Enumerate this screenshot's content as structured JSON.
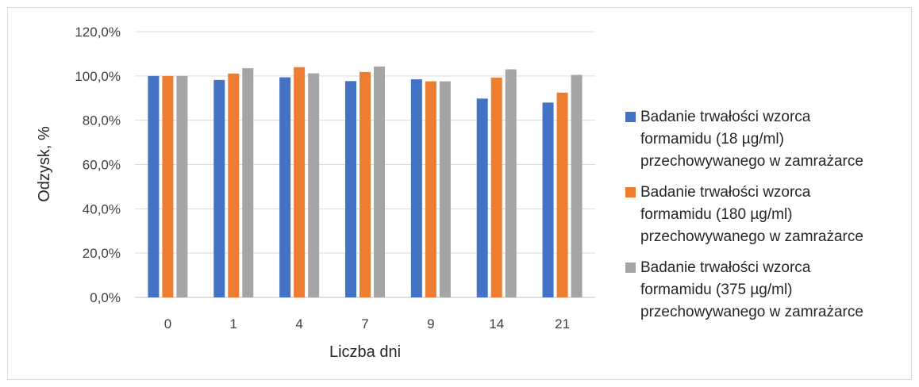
{
  "chart_data": {
    "type": "bar",
    "categories": [
      "0",
      "1",
      "4",
      "7",
      "9",
      "14",
      "21"
    ],
    "series": [
      {
        "name": "Badanie trwałości wzorca\nformamidu (18 µg/ml)\nprzechowywanego w zamrażarce",
        "color": "#4472c4",
        "values": [
          100.0,
          98.2,
          99.4,
          97.7,
          98.5,
          89.8,
          88.0
        ]
      },
      {
        "name": "Badanie trwałości wzorca\nformamidu (180 µg/ml)\nprzechowywanego w zamrażarce",
        "color": "#ed7d31",
        "values": [
          100.0,
          101.1,
          104.0,
          101.8,
          97.6,
          99.3,
          92.5
        ]
      },
      {
        "name": "Badanie trwałości wzorca\nformamidu (375 µg/ml)\nprzechowywanego w zamrażarce",
        "color": "#a5a5a5",
        "values": [
          100.0,
          103.5,
          101.2,
          104.3,
          97.6,
          103.0,
          100.5
        ]
      }
    ],
    "xlabel": "Liczba dni",
    "ylabel": "Odzysk, %",
    "ylim": [
      0,
      120
    ],
    "yticks": [
      "0,0%",
      "20,0%",
      "40,0%",
      "60,0%",
      "80,0%",
      "100,0%",
      "120,0%"
    ],
    "grid": true,
    "legend": "right"
  }
}
